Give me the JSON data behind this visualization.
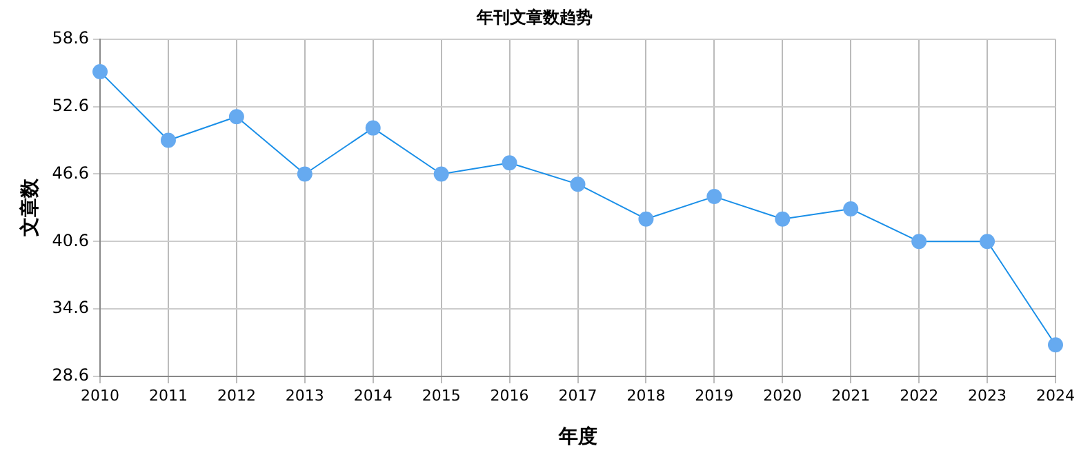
{
  "chart_data": {
    "type": "line",
    "title": "年刊文章数趋势",
    "xlabel": "年度",
    "ylabel": "文章数",
    "categories": [
      "2010",
      "2011",
      "2012",
      "2013",
      "2014",
      "2015",
      "2016",
      "2017",
      "2018",
      "2019",
      "2020",
      "2021",
      "2022",
      "2023",
      "2024"
    ],
    "series": [
      {
        "color": "#1a8fe8",
        "values": [
          55.7,
          49.6,
          51.7,
          46.6,
          50.7,
          46.6,
          47.6,
          45.7,
          42.6,
          44.6,
          42.6,
          43.5,
          40.6,
          40.6,
          31.4
        ]
      }
    ],
    "ylim": [
      28.6,
      58.6
    ],
    "yticks": [
      28.6,
      34.6,
      40.6,
      46.6,
      52.6,
      58.6
    ],
    "grid": true,
    "legend": false,
    "marker": "circle",
    "line_style": "solid"
  }
}
